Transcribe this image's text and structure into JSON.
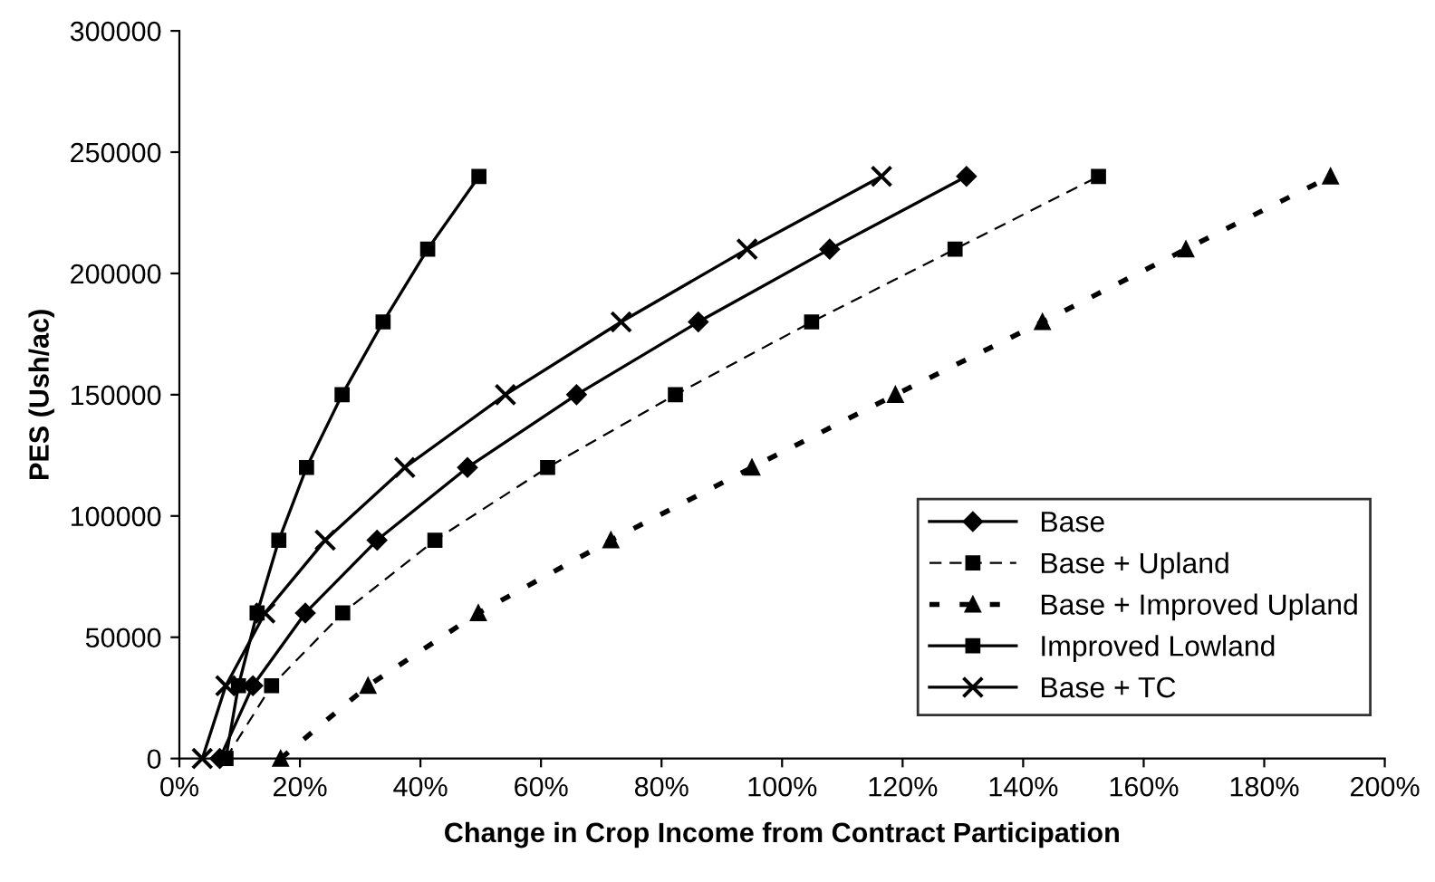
{
  "chart_data": {
    "type": "line",
    "xlabel": "Change in Crop Income from Contract Participation",
    "ylabel": "PES (Ush/ac)",
    "xlim": [
      0,
      200
    ],
    "ylim": [
      0,
      300000
    ],
    "xticks": [
      {
        "value": 0,
        "label": "0%"
      },
      {
        "value": 20,
        "label": "20%"
      },
      {
        "value": 40,
        "label": "40%"
      },
      {
        "value": 60,
        "label": "60%"
      },
      {
        "value": 80,
        "label": "80%"
      },
      {
        "value": 100,
        "label": "100%"
      },
      {
        "value": 120,
        "label": "120%"
      },
      {
        "value": 140,
        "label": "140%"
      },
      {
        "value": 160,
        "label": "160%"
      },
      {
        "value": 180,
        "label": "180%"
      },
      {
        "value": 200,
        "label": "200%"
      }
    ],
    "yticks": [
      0,
      50000,
      100000,
      150000,
      200000,
      250000,
      300000
    ],
    "grid": false,
    "legend": "bottom right",
    "series": [
      {
        "name": "Base",
        "color": "#000000",
        "marker": "diamond",
        "line_style": "solid",
        "x": [
          6.7,
          12.2,
          20.9,
          32.8,
          47.8,
          65.9,
          86.1,
          107.9,
          130.6
        ],
        "values": [
          0,
          30000,
          60000,
          90000,
          120000,
          150000,
          180000,
          210000,
          240000
        ]
      },
      {
        "name": "Base + Upland",
        "color": "#000000",
        "marker": "square",
        "line_style": "dashed",
        "x": [
          7.7,
          15.3,
          27.1,
          42.4,
          61.1,
          82.3,
          104.9,
          128.7,
          152.5
        ],
        "values": [
          0,
          30000,
          60000,
          90000,
          120000,
          150000,
          180000,
          210000,
          240000
        ]
      },
      {
        "name": "Base + Improved Upland",
        "color": "#000000",
        "marker": "triangle",
        "line_style": "dotted",
        "x": [
          16.8,
          31.3,
          49.6,
          71.6,
          95,
          118.8,
          143.2,
          167,
          191
        ],
        "values": [
          0,
          30000,
          60000,
          90000,
          120000,
          150000,
          180000,
          210000,
          240000
        ]
      },
      {
        "name": "Improved Lowland",
        "color": "#000000",
        "marker": "square",
        "line_style": "solid",
        "x": [
          7.7,
          9.8,
          12.9,
          16.5,
          21.1,
          27,
          33.8,
          41.2,
          49.7
        ],
        "values": [
          0,
          30000,
          60000,
          90000,
          120000,
          150000,
          180000,
          210000,
          240000
        ]
      },
      {
        "name": "Base + TC",
        "color": "#000000",
        "marker": "cross",
        "line_style": "solid",
        "x": [
          3.8,
          7.7,
          14.2,
          24.2,
          37.4,
          54.1,
          73.3,
          94.2,
          116.5
        ],
        "values": [
          0,
          30000,
          60000,
          90000,
          120000,
          150000,
          180000,
          210000,
          240000
        ]
      }
    ]
  }
}
